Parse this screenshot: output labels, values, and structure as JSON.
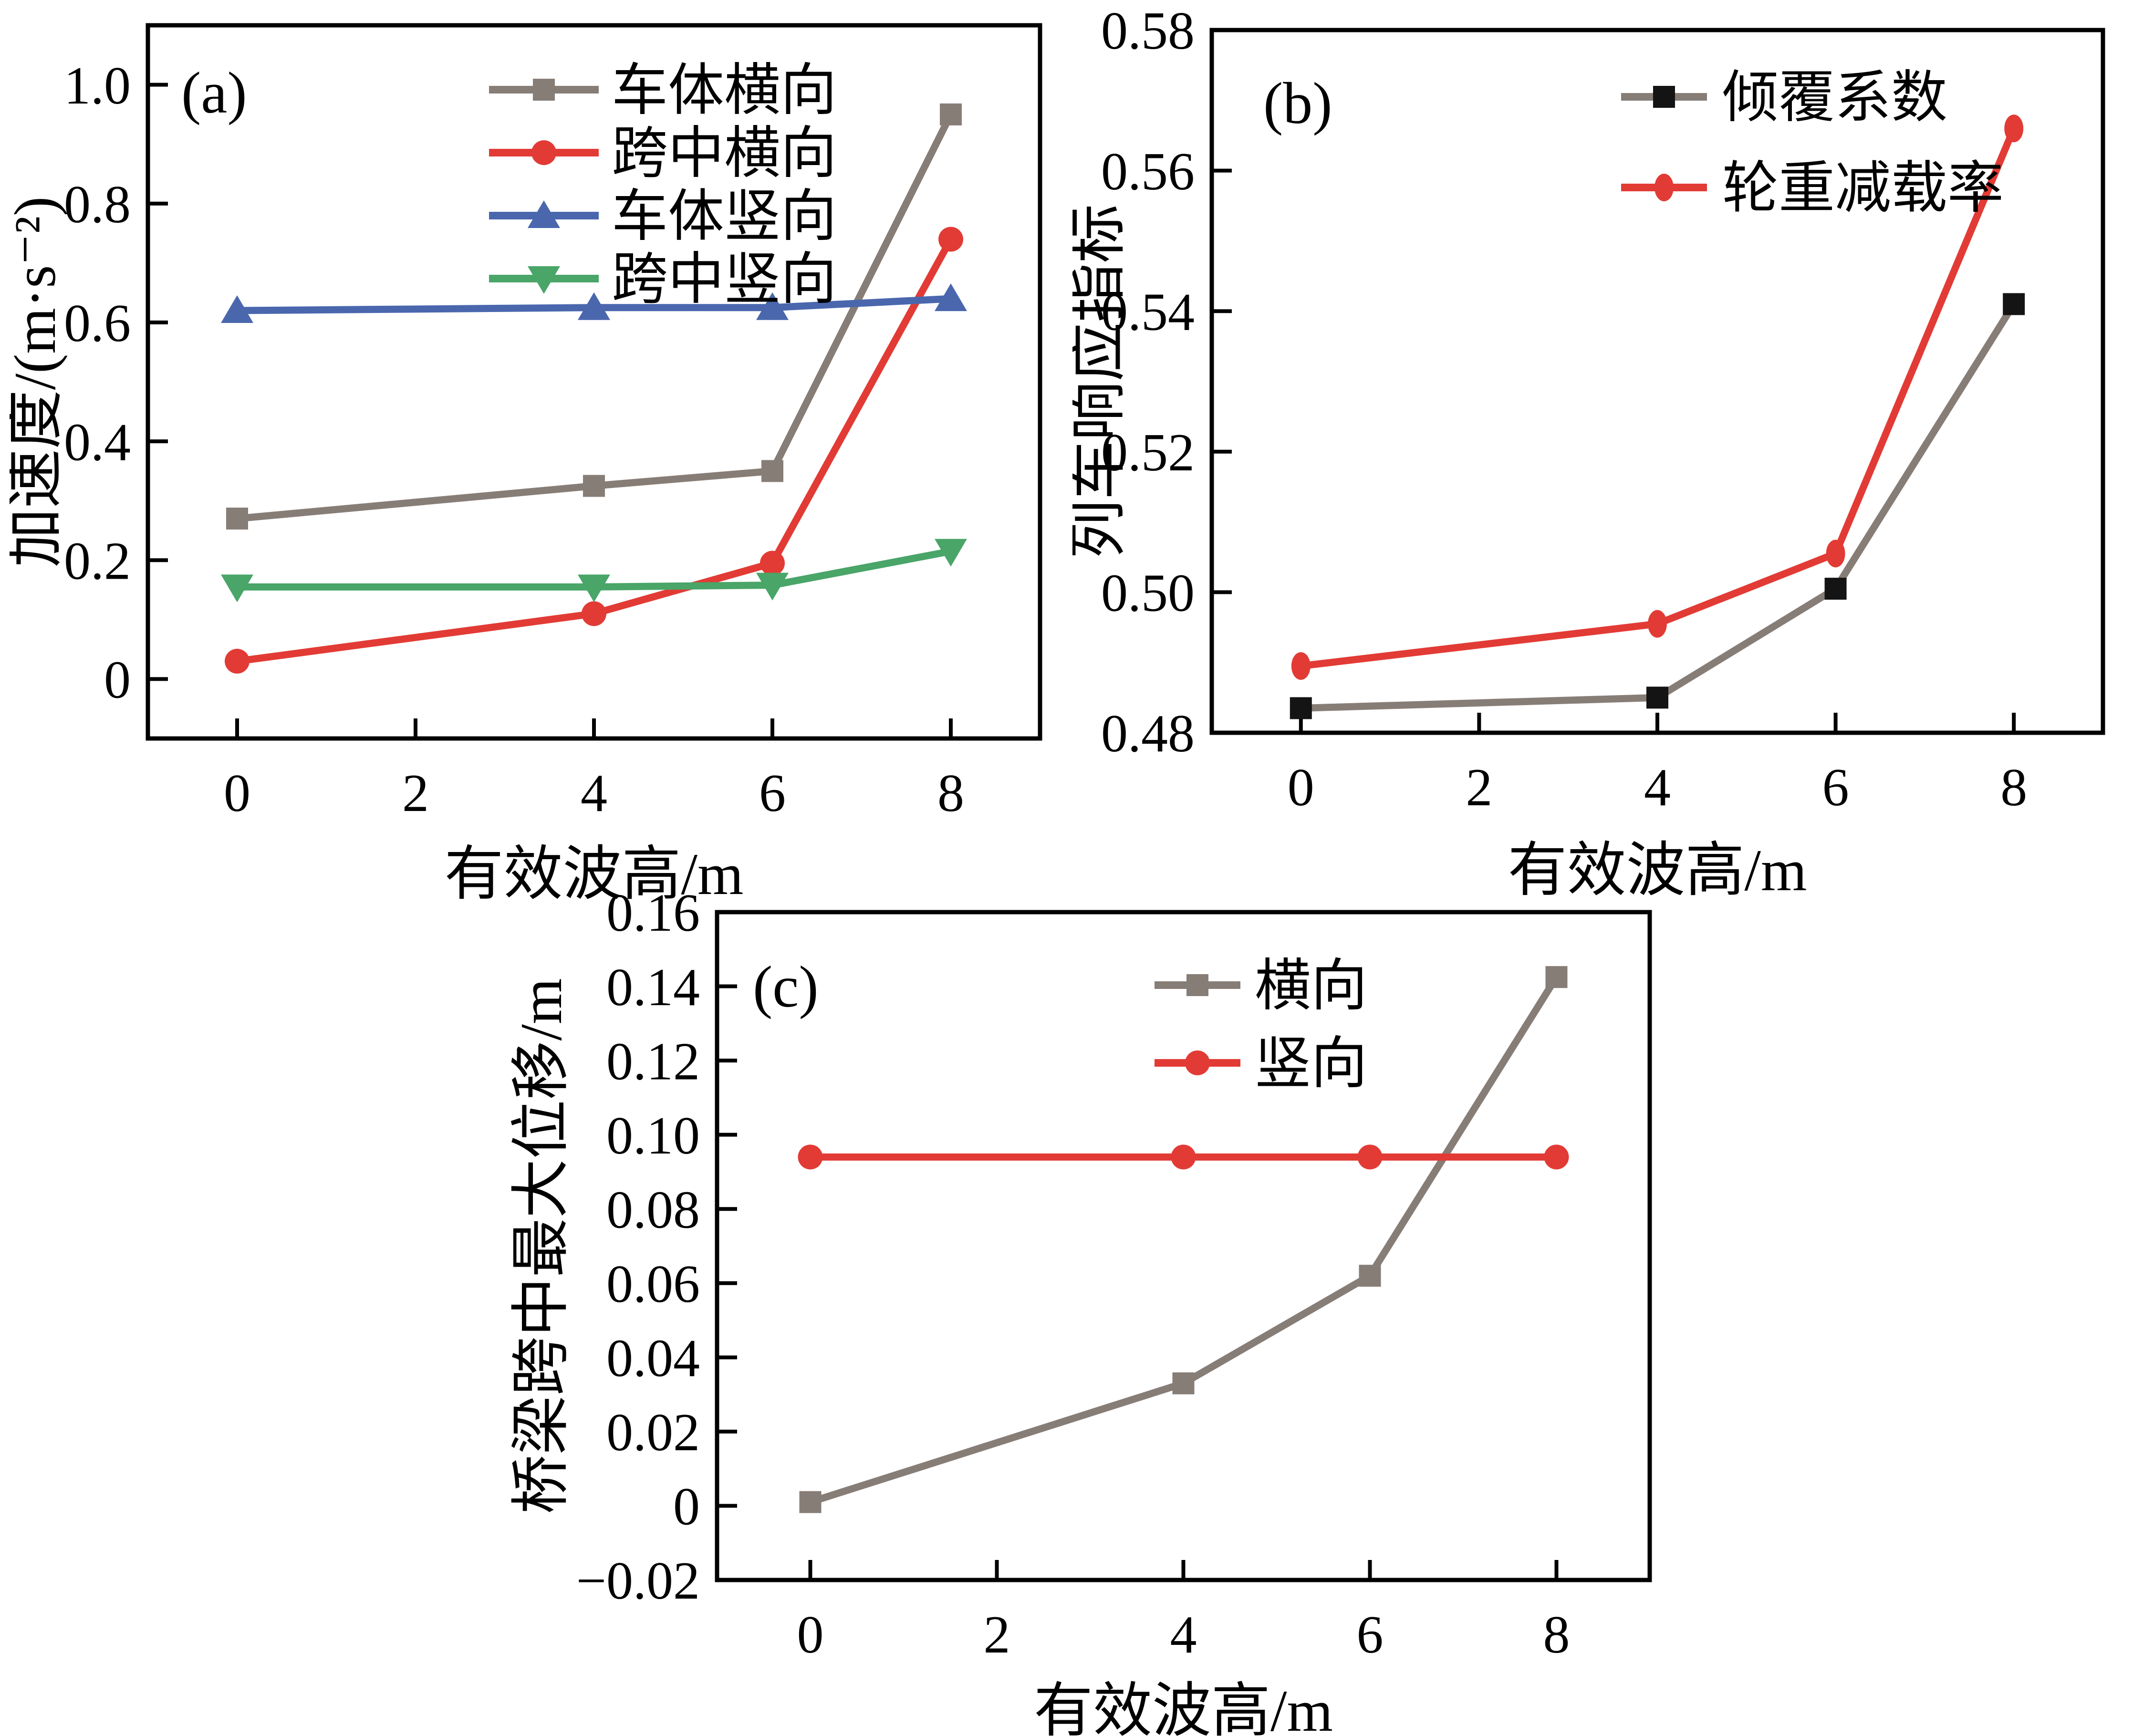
{
  "figure": {
    "background": "#ffffff",
    "axis_color": "#000000",
    "text_color": "#000000"
  },
  "chart_data": [
    {
      "id": "a",
      "type": "line",
      "panel_label": "(a)",
      "xlabel": "有效波高/m",
      "ylabel": "加速度/(m·s⁻²)",
      "xlim": [
        -1,
        9
      ],
      "ylim": [
        -0.1,
        1.1
      ],
      "grid": false,
      "legend_position": "top-center-inside",
      "xticks": [
        {
          "v": 0,
          "label": "0"
        },
        {
          "v": 2,
          "label": "2"
        },
        {
          "v": 4,
          "label": "4"
        },
        {
          "v": 6,
          "label": "6"
        },
        {
          "v": 8,
          "label": "8"
        }
      ],
      "yticks": [
        {
          "v": 0,
          "label": "0"
        },
        {
          "v": 0.2,
          "label": "0.2"
        },
        {
          "v": 0.4,
          "label": "0.4"
        },
        {
          "v": 0.6,
          "label": "0.6"
        },
        {
          "v": 0.8,
          "label": "0.8"
        },
        {
          "v": 1.0,
          "label": "1.0"
        }
      ],
      "x": [
        0,
        4,
        6,
        8
      ],
      "series": [
        {
          "name": "车体横向",
          "marker": "square",
          "marker_color": "#877d77",
          "line_color": "#877d77",
          "values": [
            0.27,
            0.325,
            0.35,
            0.95
          ]
        },
        {
          "name": "跨中横向",
          "marker": "circle",
          "marker_color": "#e23b35",
          "line_color": "#e23b35",
          "values": [
            0.03,
            0.11,
            0.195,
            0.74
          ]
        },
        {
          "name": "车体竖向",
          "marker": "triangle-up",
          "marker_color": "#4a67ae",
          "line_color": "#4a67ae",
          "values": [
            0.62,
            0.625,
            0.625,
            0.64
          ]
        },
        {
          "name": "跨中竖向",
          "marker": "triangle-down",
          "marker_color": "#49a568",
          "line_color": "#49a568",
          "values": [
            0.155,
            0.155,
            0.158,
            0.215
          ]
        }
      ]
    },
    {
      "id": "b",
      "type": "line",
      "panel_label": "(b)",
      "xlabel": "有效波高/m",
      "ylabel": "列车响应指标",
      "xlim": [
        -1,
        9
      ],
      "ylim": [
        0.48,
        0.58
      ],
      "grid": false,
      "legend_position": "top-center-inside",
      "xticks": [
        {
          "v": 0,
          "label": "0"
        },
        {
          "v": 2,
          "label": "2"
        },
        {
          "v": 4,
          "label": "4"
        },
        {
          "v": 6,
          "label": "6"
        },
        {
          "v": 8,
          "label": "8"
        }
      ],
      "yticks": [
        {
          "v": 0.48,
          "label": "0.48"
        },
        {
          "v": 0.5,
          "label": "0.50"
        },
        {
          "v": 0.52,
          "label": "0.52"
        },
        {
          "v": 0.54,
          "label": "0.54"
        },
        {
          "v": 0.56,
          "label": "0.56"
        },
        {
          "v": 0.58,
          "label": "0.58"
        }
      ],
      "x": [
        0,
        4,
        6,
        8
      ],
      "series": [
        {
          "name": "倾覆系数",
          "marker": "square",
          "marker_color": "#141414",
          "line_color": "#877d77",
          "values": [
            0.4835,
            0.485,
            0.5005,
            0.541
          ]
        },
        {
          "name": "轮重减载率",
          "marker": "ellipse-v",
          "marker_color": "#e23b35",
          "line_color": "#e23b35",
          "values": [
            0.4895,
            0.4955,
            0.5055,
            0.566
          ]
        }
      ]
    },
    {
      "id": "c",
      "type": "line",
      "panel_label": "(c)",
      "xlabel": "有效波高/m",
      "ylabel": "桥梁跨中最大位移/m",
      "xlim": [
        -1,
        9
      ],
      "ylim": [
        -0.02,
        0.16
      ],
      "grid": false,
      "legend_position": "top-right-inside",
      "xticks": [
        {
          "v": 0,
          "label": "0"
        },
        {
          "v": 2,
          "label": "2"
        },
        {
          "v": 4,
          "label": "4"
        },
        {
          "v": 6,
          "label": "6"
        },
        {
          "v": 8,
          "label": "8"
        }
      ],
      "yticks": [
        {
          "v": -0.02,
          "label": "−0.02"
        },
        {
          "v": 0,
          "label": "0"
        },
        {
          "v": 0.02,
          "label": "0.02"
        },
        {
          "v": 0.04,
          "label": "0.04"
        },
        {
          "v": 0.06,
          "label": "0.06"
        },
        {
          "v": 0.08,
          "label": "0.08"
        },
        {
          "v": 0.1,
          "label": "0.10"
        },
        {
          "v": 0.12,
          "label": "0.12"
        },
        {
          "v": 0.14,
          "label": "0.14"
        },
        {
          "v": 0.16,
          "label": "0.16"
        }
      ],
      "x": [
        0,
        4,
        6,
        8
      ],
      "series": [
        {
          "name": "横向",
          "marker": "square",
          "marker_color": "#877d77",
          "line_color": "#877d77",
          "values": [
            0.001,
            0.033,
            0.062,
            0.1425
          ]
        },
        {
          "name": "竖向",
          "marker": "circle",
          "marker_color": "#e23b35",
          "line_color": "#e23b35",
          "values": [
            0.094,
            0.094,
            0.094,
            0.094
          ]
        }
      ]
    }
  ]
}
